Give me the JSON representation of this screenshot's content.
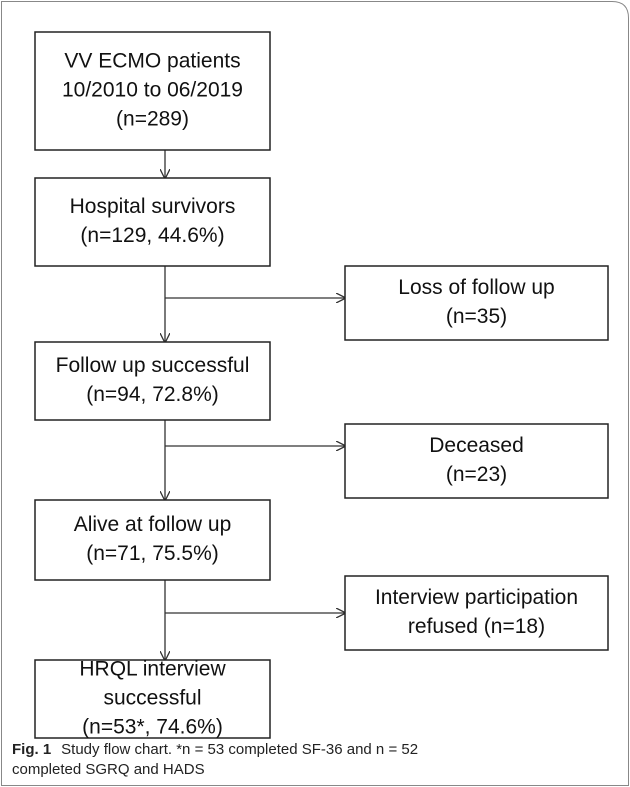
{
  "nodes": [
    {
      "lines": [
        "VV ECMO patients",
        "10/2010 to 06/2019",
        "(n=289)"
      ]
    },
    {
      "lines": [
        "Hospital survivors",
        "(n=129, 44.6%)"
      ]
    },
    {
      "lines": [
        "Loss of follow up",
        "(n=35)"
      ]
    },
    {
      "lines": [
        "Follow up successful",
        "(n=94, 72.8%)"
      ]
    },
    {
      "lines": [
        "Deceased",
        "(n=23)"
      ]
    },
    {
      "lines": [
        "Alive at follow up",
        "(n=71, 75.5%)"
      ]
    },
    {
      "lines": [
        "Interview participation",
        "refused (n=18)"
      ]
    },
    {
      "lines": [
        "HRQL interview",
        "successful",
        "(n=53*, 74.6%)"
      ]
    }
  ],
  "caption": {
    "label": "Fig. 1",
    "lines": [
      "Study flow chart. *n = 53 completed SF-36 and n = 52",
      "completed SGRQ and HADS"
    ]
  }
}
